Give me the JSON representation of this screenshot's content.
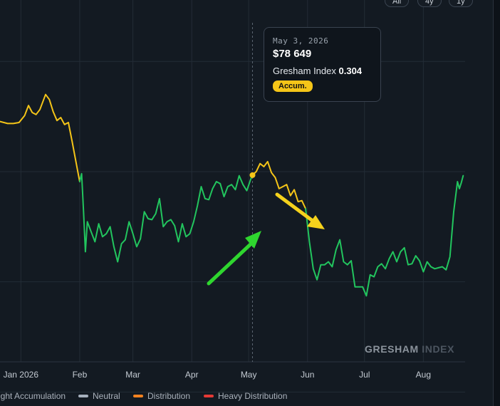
{
  "range_buttons": [
    "All",
    "4y",
    "1y"
  ],
  "tooltip": {
    "date": "May 3, 2026",
    "price": "$78 649",
    "index_label": "Gresham Index",
    "index_value": "0.304",
    "badge": "Accum."
  },
  "watermark": {
    "brand": "GRESHAM",
    "suffix": "INDEX"
  },
  "legend": [
    {
      "label": "ight Accumulation",
      "color": "#22c55e"
    },
    {
      "label": "Neutral",
      "color": "#a6b0bd"
    },
    {
      "label": "Distribution",
      "color": "#f5821f"
    },
    {
      "label": "Heavy Distribution",
      "color": "#e53935"
    }
  ],
  "colors": {
    "accumulation": "#f5c518",
    "light_accumulation": "#22c55e",
    "grid": "#232c36",
    "background": "#131a22",
    "arrow_green": "#2fd62f",
    "arrow_yellow": "#f5d21c"
  },
  "chart_data": {
    "type": "line",
    "x_tick_labels": [
      "Jan 2026",
      "Feb",
      "Mar",
      "Apr",
      "May",
      "Jun",
      "Jul",
      "Aug"
    ],
    "x_tick_days": [
      0,
      31,
      59,
      90,
      120,
      151,
      181,
      212
    ],
    "x_range_days": [
      -11,
      234
    ],
    "y_range": [
      62000,
      94000
    ],
    "horizontal_grid_values": [
      90000,
      79000,
      68000,
      57000
    ],
    "hover_day": 122,
    "hover_value": 78649,
    "series": [
      {
        "zone": "Accumulation",
        "color": "#f5c518",
        "points": [
          [
            -11,
            84000
          ],
          [
            -7,
            83800
          ],
          [
            -4,
            83800
          ],
          [
            -1,
            83900
          ],
          [
            2,
            84600
          ],
          [
            4,
            85600
          ],
          [
            6,
            84900
          ],
          [
            8,
            84700
          ],
          [
            10,
            85200
          ],
          [
            13,
            86700
          ],
          [
            15,
            86200
          ],
          [
            17,
            85000
          ],
          [
            19,
            84100
          ],
          [
            21,
            84400
          ],
          [
            23,
            83700
          ],
          [
            25,
            83900
          ],
          [
            27,
            82000
          ],
          [
            29,
            80000
          ],
          [
            31,
            78000
          ]
        ]
      },
      {
        "zone": "Light Accumulation",
        "color": "#22c55e",
        "points": [
          [
            31,
            78000
          ],
          [
            32,
            78800
          ],
          [
            33,
            75000
          ],
          [
            34,
            71000
          ],
          [
            35,
            74000
          ],
          [
            37,
            73000
          ],
          [
            39,
            72000
          ],
          [
            41,
            73800
          ],
          [
            43,
            72500
          ],
          [
            45,
            72800
          ],
          [
            47,
            73500
          ],
          [
            49,
            71500
          ],
          [
            51,
            70000
          ],
          [
            53,
            71800
          ],
          [
            55,
            72200
          ],
          [
            57,
            74000
          ],
          [
            59,
            72800
          ],
          [
            61,
            71500
          ],
          [
            63,
            72300
          ],
          [
            65,
            75000
          ],
          [
            67,
            74300
          ],
          [
            69,
            74200
          ],
          [
            71,
            74800
          ],
          [
            73,
            76300
          ],
          [
            75,
            73500
          ],
          [
            77,
            74000
          ],
          [
            79,
            74200
          ],
          [
            81,
            73600
          ],
          [
            83,
            72000
          ],
          [
            85,
            73800
          ],
          [
            87,
            72500
          ],
          [
            89,
            72800
          ],
          [
            91,
            74000
          ],
          [
            93,
            75600
          ],
          [
            95,
            77500
          ],
          [
            97,
            76300
          ],
          [
            99,
            76200
          ],
          [
            101,
            77300
          ],
          [
            103,
            78000
          ],
          [
            105,
            77800
          ],
          [
            107,
            76500
          ],
          [
            109,
            77500
          ],
          [
            111,
            77700
          ],
          [
            113,
            77200
          ],
          [
            115,
            78600
          ],
          [
            117,
            77700
          ],
          [
            119,
            77100
          ],
          [
            121,
            78200
          ],
          [
            122,
            78649
          ]
        ]
      },
      {
        "zone": "Accumulation",
        "color": "#f5c518",
        "points": [
          [
            122,
            78649
          ],
          [
            124,
            79000
          ],
          [
            126,
            79800
          ],
          [
            128,
            79500
          ],
          [
            130,
            80000
          ],
          [
            132,
            78900
          ],
          [
            134,
            78400
          ],
          [
            136,
            77300
          ],
          [
            138,
            77500
          ],
          [
            140,
            77700
          ],
          [
            142,
            76600
          ],
          [
            144,
            77200
          ],
          [
            146,
            76000
          ],
          [
            148,
            76100
          ],
          [
            150,
            75300
          ]
        ]
      },
      {
        "zone": "Light Accumulation",
        "color": "#22c55e",
        "points": [
          [
            150,
            75300
          ],
          [
            152,
            72000
          ],
          [
            154,
            69300
          ],
          [
            156,
            68200
          ],
          [
            158,
            69700
          ],
          [
            160,
            69700
          ],
          [
            162,
            70000
          ],
          [
            164,
            69500
          ],
          [
            166,
            71200
          ],
          [
            168,
            72200
          ],
          [
            170,
            70000
          ],
          [
            172,
            69700
          ],
          [
            174,
            70100
          ],
          [
            176,
            67500
          ],
          [
            178,
            67500
          ],
          [
            180,
            67500
          ],
          [
            182,
            66600
          ],
          [
            184,
            68700
          ],
          [
            186,
            68500
          ],
          [
            188,
            69500
          ],
          [
            190,
            69800
          ],
          [
            192,
            69300
          ],
          [
            194,
            70300
          ],
          [
            196,
            71000
          ],
          [
            198,
            70000
          ],
          [
            200,
            71000
          ],
          [
            202,
            71400
          ],
          [
            204,
            69700
          ],
          [
            206,
            69800
          ],
          [
            208,
            70600
          ],
          [
            210,
            70100
          ],
          [
            212,
            69000
          ],
          [
            214,
            70000
          ],
          [
            216,
            69500
          ],
          [
            218,
            69300
          ],
          [
            220,
            69400
          ],
          [
            222,
            69500
          ],
          [
            224,
            69200
          ],
          [
            226,
            70500
          ],
          [
            228,
            75000
          ],
          [
            230,
            78000
          ],
          [
            231,
            77300
          ],
          [
            232,
            77900
          ],
          [
            233,
            78600
          ]
        ]
      }
    ]
  }
}
